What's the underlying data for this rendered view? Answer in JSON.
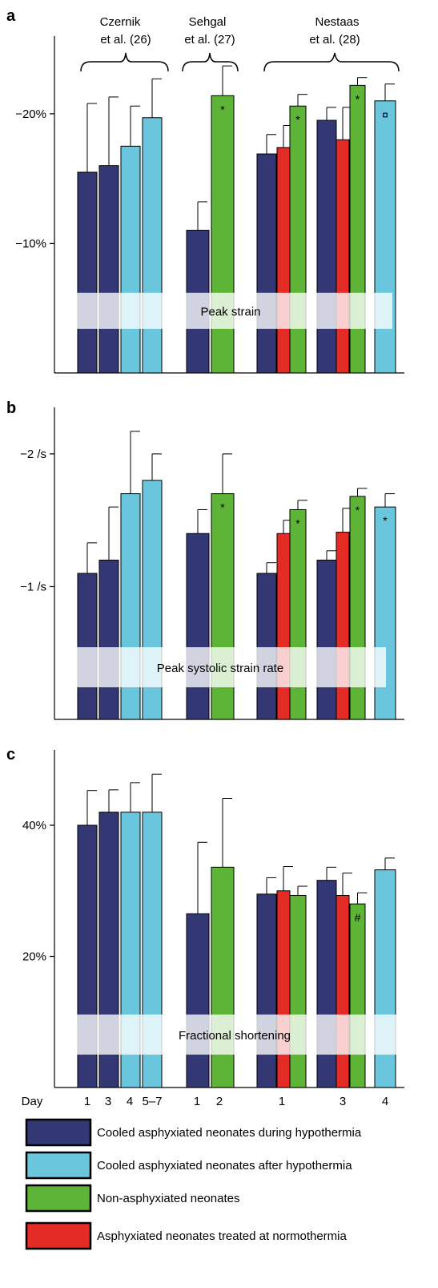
{
  "colors": {
    "during": "#333875",
    "after": "#6ac6dd",
    "non": "#5db436",
    "normo": "#e52b25",
    "band": "#ffffff",
    "axis": "#000000"
  },
  "studies": [
    {
      "line1": "Czernik",
      "line2": "et al. (26)"
    },
    {
      "line1": "Sehgal",
      "line2": "et al. (27)"
    },
    {
      "line1": "Nestaas",
      "line2": "et al. (28)"
    }
  ],
  "x_axis": {
    "label": "Day",
    "ticks": [
      "1",
      "3",
      "4",
      "5–7",
      "1",
      "2",
      "1",
      "3",
      "4"
    ]
  },
  "chart_data": [
    {
      "type": "bar",
      "panel_letter": "a",
      "band_label": "Peak strain",
      "y_ticks": [
        "−20%",
        "−10%"
      ],
      "y_tick_values": [
        20,
        10
      ],
      "ylim": [
        0,
        26
      ],
      "bars": [
        {
          "series": "during",
          "value": 15.5,
          "err": 5.3
        },
        {
          "series": "during",
          "value": 16.0,
          "err": 5.3
        },
        {
          "series": "after",
          "value": 17.5,
          "err": 3.1
        },
        {
          "series": "after",
          "value": 19.7,
          "err": 3.0
        },
        {
          "series": "during",
          "value": 11.0,
          "err": 2.2
        },
        {
          "series": "non",
          "value": 21.4,
          "err": 2.3,
          "mark": "*"
        },
        {
          "series": "during",
          "value": 16.9,
          "err": 1.5
        },
        {
          "series": "normo",
          "value": 17.4,
          "err": 1.7
        },
        {
          "series": "non",
          "value": 20.6,
          "err": 0.9,
          "mark": "*"
        },
        {
          "series": "during",
          "value": 19.5,
          "err": 1.0
        },
        {
          "series": "normo",
          "value": 18.0,
          "err": 2.5
        },
        {
          "series": "non",
          "value": 22.2,
          "err": 0.6,
          "mark": "*"
        },
        {
          "series": "after",
          "value": 21.0,
          "err": 1.3,
          "mark": "¤"
        }
      ]
    },
    {
      "type": "bar",
      "panel_letter": "b",
      "band_label": "Peak systolic strain rate",
      "y_ticks": [
        "−2 /s",
        "−1 /s"
      ],
      "y_tick_values": [
        2,
        1
      ],
      "ylim": [
        0,
        2.35
      ],
      "bars": [
        {
          "series": "during",
          "value": 1.1,
          "err": 0.23
        },
        {
          "series": "during",
          "value": 1.2,
          "err": 0.4
        },
        {
          "series": "after",
          "value": 1.7,
          "err": 0.47
        },
        {
          "series": "after",
          "value": 1.8,
          "err": 0.2
        },
        {
          "series": "during",
          "value": 1.4,
          "err": 0.18
        },
        {
          "series": "non",
          "value": 1.7,
          "err": 0.3,
          "mark": "*"
        },
        {
          "series": "during",
          "value": 1.1,
          "err": 0.08
        },
        {
          "series": "normo",
          "value": 1.4,
          "err": 0.1
        },
        {
          "series": "non",
          "value": 1.58,
          "err": 0.07,
          "mark": "*"
        },
        {
          "series": "during",
          "value": 1.2,
          "err": 0.07
        },
        {
          "series": "normo",
          "value": 1.41,
          "err": 0.18
        },
        {
          "series": "non",
          "value": 1.68,
          "err": 0.06,
          "mark": "*"
        },
        {
          "series": "after",
          "value": 1.6,
          "err": 0.1,
          "mark": "*"
        }
      ]
    },
    {
      "type": "bar",
      "panel_letter": "c",
      "band_label": "Fractional shortening",
      "y_ticks": [
        "40%",
        "20%"
      ],
      "y_tick_values": [
        40,
        20
      ],
      "ylim": [
        0,
        51.5
      ],
      "bars": [
        {
          "series": "during",
          "value": 40.0,
          "err": 5.3
        },
        {
          "series": "during",
          "value": 42.0,
          "err": 3.4
        },
        {
          "series": "after",
          "value": 42.0,
          "err": 4.5
        },
        {
          "series": "after",
          "value": 42.0,
          "err": 5.8
        },
        {
          "series": "during",
          "value": 26.5,
          "err": 10.9
        },
        {
          "series": "non",
          "value": 33.6,
          "err": 10.5
        },
        {
          "series": "during",
          "value": 29.5,
          "err": 2.5
        },
        {
          "series": "normo",
          "value": 30.0,
          "err": 3.7
        },
        {
          "series": "non",
          "value": 29.3,
          "err": 1.4
        },
        {
          "series": "during",
          "value": 31.6,
          "err": 2.0
        },
        {
          "series": "normo",
          "value": 29.3,
          "err": 3.4
        },
        {
          "series": "non",
          "value": 28.0,
          "err": 1.7,
          "mark": "#"
        },
        {
          "series": "after",
          "value": 33.2,
          "err": 1.8
        }
      ]
    }
  ],
  "legend": [
    {
      "series": "during",
      "label": "Cooled asphyxiated neonates during hypothermia"
    },
    {
      "series": "after",
      "label": "Cooled asphyxiated neonates after hypothermia"
    },
    {
      "series": "non",
      "label": "Non-asphyxiated neonates"
    },
    {
      "series": "normo",
      "label": "Asphyxiated neonates treated at normothermia"
    }
  ]
}
